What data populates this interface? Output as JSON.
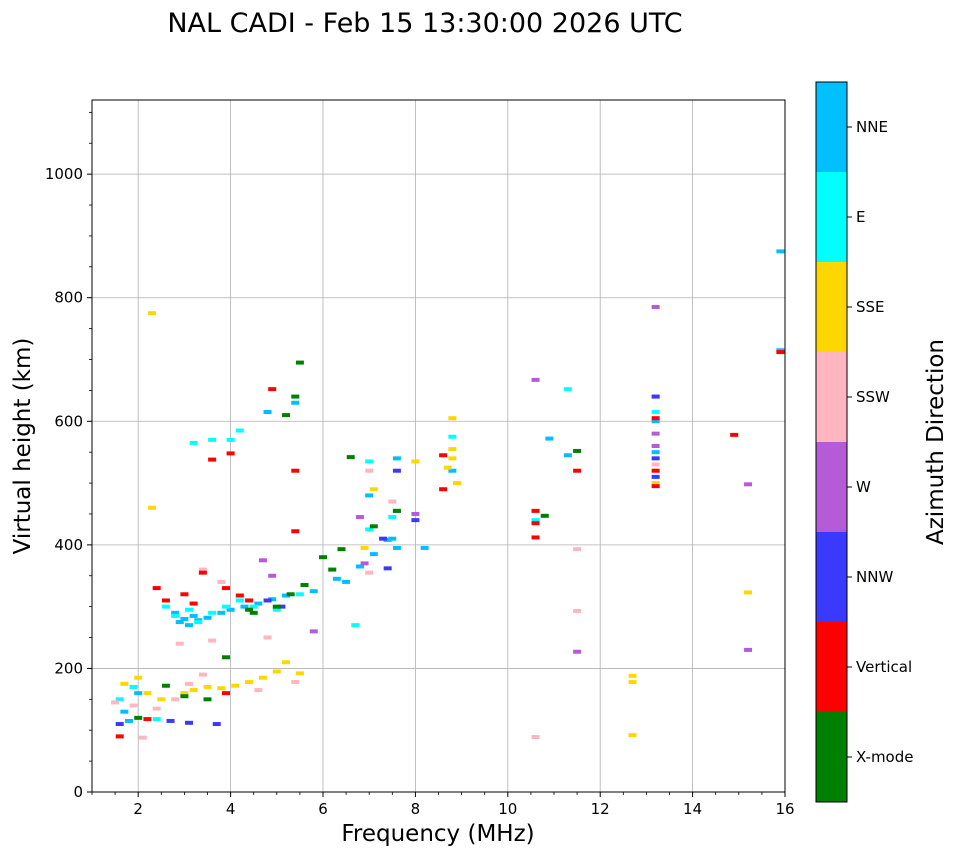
{
  "chart_data": {
    "type": "scatter",
    "title": "NAL CADI - Feb 15 13:30:00 2026 UTC",
    "xlabel": "Frequency (MHz)",
    "ylabel": "Virtual height (km)",
    "xlim": [
      1,
      16
    ],
    "ylim": [
      0,
      1120
    ],
    "xticks": [
      2,
      4,
      6,
      8,
      10,
      12,
      14,
      16
    ],
    "xtick_labels": [
      "2",
      "4",
      "6",
      "8",
      "10",
      "12",
      "14",
      "16"
    ],
    "yticks": [
      0,
      200,
      400,
      600,
      800,
      1000
    ],
    "ytick_labels": [
      "0",
      "200",
      "400",
      "600",
      "800",
      "1000"
    ],
    "grid": true,
    "colorbar": {
      "label": "Azimuth Direction",
      "categories": [
        "X-mode",
        "Vertical",
        "NNW",
        "W",
        "SSW",
        "SSE",
        "E",
        "NNE"
      ],
      "colors": [
        "#008000",
        "#ff0000",
        "#3a3aff",
        "#b65bd8",
        "#ffb6c1",
        "#ffd700",
        "#00ffff",
        "#00bfff"
      ]
    },
    "series": [
      {
        "name": "NNE",
        "points": [
          [
            2.8,
            290
          ],
          [
            2.9,
            275
          ],
          [
            3.0,
            280
          ],
          [
            3.1,
            270
          ],
          [
            3.2,
            285
          ],
          [
            3.3,
            278
          ],
          [
            3.5,
            282
          ],
          [
            3.8,
            290
          ],
          [
            4.0,
            295
          ],
          [
            4.3,
            300
          ],
          [
            4.6,
            305
          ],
          [
            4.9,
            312
          ],
          [
            5.2,
            318
          ],
          [
            5.8,
            325
          ],
          [
            6.3,
            345
          ],
          [
            6.5,
            340
          ],
          [
            6.8,
            365
          ],
          [
            7.1,
            385
          ],
          [
            7.4,
            408
          ],
          [
            7.5,
            410
          ],
          [
            7.6,
            395
          ],
          [
            7.6,
            540
          ],
          [
            8.2,
            395
          ],
          [
            8.8,
            520
          ],
          [
            10.9,
            572
          ],
          [
            11.3,
            545
          ],
          [
            13.2,
            550
          ],
          [
            13.2,
            600
          ],
          [
            4.8,
            615
          ],
          [
            2.0,
            160
          ],
          [
            1.7,
            130
          ],
          [
            1.8,
            115
          ],
          [
            15.9,
            875
          ],
          [
            15.9,
            715
          ],
          [
            5.4,
            630
          ],
          [
            7.0,
            480
          ]
        ]
      },
      {
        "name": "E",
        "points": [
          [
            2.6,
            300
          ],
          [
            2.8,
            285
          ],
          [
            3.1,
            295
          ],
          [
            3.3,
            275
          ],
          [
            3.6,
            290
          ],
          [
            3.9,
            300
          ],
          [
            4.2,
            310
          ],
          [
            4.5,
            300
          ],
          [
            5.0,
            295
          ],
          [
            5.5,
            320
          ],
          [
            7.0,
            425
          ],
          [
            7.0,
            535
          ],
          [
            8.8,
            575
          ],
          [
            13.2,
            615
          ],
          [
            11.3,
            652
          ],
          [
            4.0,
            570
          ],
          [
            4.2,
            585
          ],
          [
            3.2,
            565
          ],
          [
            3.6,
            570
          ],
          [
            1.6,
            150
          ],
          [
            1.9,
            170
          ],
          [
            2.4,
            118
          ],
          [
            7.5,
            445
          ],
          [
            10.6,
            440
          ],
          [
            6.7,
            270
          ]
        ]
      },
      {
        "name": "SSE",
        "points": [
          [
            1.7,
            175
          ],
          [
            2.0,
            185
          ],
          [
            2.2,
            160
          ],
          [
            2.5,
            150
          ],
          [
            3.0,
            160
          ],
          [
            3.2,
            165
          ],
          [
            3.5,
            170
          ],
          [
            3.8,
            168
          ],
          [
            4.1,
            172
          ],
          [
            4.4,
            178
          ],
          [
            4.7,
            185
          ],
          [
            5.0,
            195
          ],
          [
            5.2,
            210
          ],
          [
            5.5,
            192
          ],
          [
            8.8,
            605
          ],
          [
            8.8,
            555
          ],
          [
            8.8,
            540
          ],
          [
            8.7,
            525
          ],
          [
            8.9,
            500
          ],
          [
            12.7,
            188
          ],
          [
            12.7,
            178
          ],
          [
            12.7,
            92
          ],
          [
            15.2,
            323
          ],
          [
            2.3,
            775
          ],
          [
            2.3,
            460
          ],
          [
            8.0,
            535
          ],
          [
            13.2,
            500
          ],
          [
            7.1,
            490
          ],
          [
            6.9,
            395
          ]
        ]
      },
      {
        "name": "SSW",
        "points": [
          [
            1.5,
            145
          ],
          [
            1.9,
            140
          ],
          [
            2.4,
            135
          ],
          [
            2.8,
            150
          ],
          [
            3.1,
            175
          ],
          [
            3.4,
            190
          ],
          [
            4.6,
            165
          ],
          [
            5.4,
            178
          ],
          [
            2.9,
            240
          ],
          [
            3.6,
            245
          ],
          [
            4.8,
            250
          ],
          [
            7.0,
            520
          ],
          [
            7.5,
            470
          ],
          [
            7.0,
            355
          ],
          [
            10.6,
            89
          ],
          [
            11.5,
            293
          ],
          [
            11.5,
            393
          ],
          [
            3.4,
            360
          ],
          [
            3.8,
            340
          ],
          [
            2.1,
            88
          ],
          [
            13.2,
            530
          ]
        ]
      },
      {
        "name": "W",
        "points": [
          [
            5.8,
            260
          ],
          [
            6.9,
            370
          ],
          [
            8.0,
            450
          ],
          [
            10.6,
            667
          ],
          [
            13.2,
            785
          ],
          [
            13.2,
            640
          ],
          [
            13.2,
            580
          ],
          [
            13.2,
            560
          ],
          [
            15.2,
            498
          ],
          [
            15.2,
            230
          ],
          [
            11.5,
            227
          ],
          [
            4.7,
            375
          ],
          [
            4.9,
            350
          ],
          [
            7.6,
            455
          ],
          [
            6.8,
            445
          ]
        ]
      },
      {
        "name": "NNW",
        "points": [
          [
            3.1,
            112
          ],
          [
            3.7,
            110
          ],
          [
            2.7,
            115
          ],
          [
            4.8,
            310
          ],
          [
            5.1,
            300
          ],
          [
            7.4,
            362
          ],
          [
            7.6,
            520
          ],
          [
            8.0,
            440
          ],
          [
            13.2,
            640
          ],
          [
            13.2,
            540
          ],
          [
            13.2,
            510
          ],
          [
            1.6,
            110
          ],
          [
            7.3,
            410
          ]
        ]
      },
      {
        "name": "Vertical",
        "points": [
          [
            2.4,
            330
          ],
          [
            2.6,
            310
          ],
          [
            3.0,
            320
          ],
          [
            3.2,
            305
          ],
          [
            3.4,
            355
          ],
          [
            3.9,
            330
          ],
          [
            4.2,
            318
          ],
          [
            4.4,
            310
          ],
          [
            4.9,
            652
          ],
          [
            5.4,
            520
          ],
          [
            5.4,
            422
          ],
          [
            8.6,
            545
          ],
          [
            8.6,
            490
          ],
          [
            10.6,
            455
          ],
          [
            10.6,
            435
          ],
          [
            10.6,
            412
          ],
          [
            11.5,
            520
          ],
          [
            13.2,
            605
          ],
          [
            13.2,
            520
          ],
          [
            13.2,
            495
          ],
          [
            14.9,
            578
          ],
          [
            15.9,
            712
          ],
          [
            4.0,
            548
          ],
          [
            3.6,
            538
          ],
          [
            1.6,
            90
          ],
          [
            2.2,
            118
          ],
          [
            3.9,
            160
          ]
        ]
      },
      {
        "name": "X-mode",
        "points": [
          [
            3.0,
            155
          ],
          [
            3.5,
            150
          ],
          [
            3.9,
            218
          ],
          [
            4.5,
            290
          ],
          [
            5.0,
            300
          ],
          [
            5.3,
            320
          ],
          [
            5.6,
            335
          ],
          [
            6.0,
            380
          ],
          [
            6.4,
            393
          ],
          [
            6.6,
            542
          ],
          [
            5.5,
            695
          ],
          [
            5.2,
            610
          ],
          [
            5.4,
            640
          ],
          [
            7.1,
            430
          ],
          [
            7.6,
            455
          ],
          [
            11.5,
            552
          ],
          [
            10.8,
            447
          ],
          [
            2.0,
            120
          ],
          [
            4.4,
            295
          ],
          [
            6.2,
            360
          ],
          [
            2.6,
            172
          ]
        ]
      }
    ]
  }
}
